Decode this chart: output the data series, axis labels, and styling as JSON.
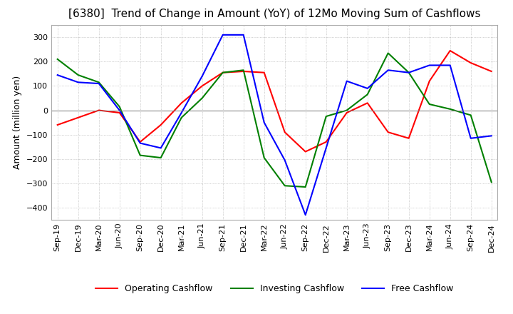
{
  "title": "[6380]  Trend of Change in Amount (YoY) of 12Mo Moving Sum of Cashflows",
  "ylabel": "Amount (million yen)",
  "x_labels": [
    "Sep-19",
    "Dec-19",
    "Mar-20",
    "Jun-20",
    "Sep-20",
    "Dec-20",
    "Mar-21",
    "Jun-21",
    "Sep-21",
    "Dec-21",
    "Mar-22",
    "Jun-22",
    "Sep-22",
    "Dec-22",
    "Mar-23",
    "Jun-23",
    "Sep-23",
    "Dec-23",
    "Mar-24",
    "Jun-24",
    "Sep-24",
    "Dec-24"
  ],
  "operating": [
    -60,
    -30,
    0,
    -10,
    -130,
    -60,
    30,
    100,
    155,
    160,
    155,
    -90,
    -170,
    -130,
    -10,
    30,
    -90,
    -115,
    120,
    245,
    195,
    160
  ],
  "investing": [
    210,
    145,
    115,
    15,
    -185,
    -195,
    -30,
    50,
    155,
    165,
    -195,
    -310,
    -315,
    -25,
    0,
    65,
    235,
    155,
    25,
    5,
    -20,
    -295
  ],
  "free": [
    145,
    115,
    110,
    0,
    -135,
    -155,
    -10,
    140,
    310,
    310,
    -50,
    -205,
    -430,
    -155,
    120,
    90,
    165,
    155,
    185,
    185,
    -115,
    -105
  ],
  "ylim": [
    -450,
    350
  ],
  "yticks": [
    -400,
    -300,
    -200,
    -100,
    0,
    100,
    200,
    300
  ],
  "operating_color": "#ff0000",
  "investing_color": "#008000",
  "free_color": "#0000ff",
  "grid_color": "#aaaaaa",
  "zero_line_color": "#888888",
  "title_fontsize": 11,
  "axis_fontsize": 8,
  "legend_fontsize": 9
}
